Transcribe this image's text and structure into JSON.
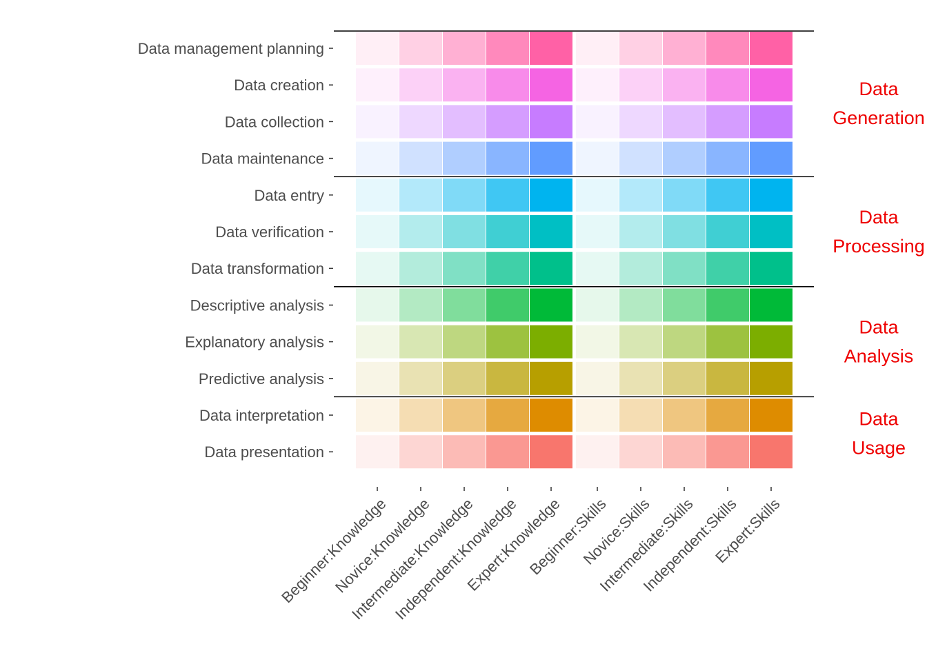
{
  "chart_data": {
    "type": "heatmap",
    "rows": [
      "Data management planning",
      "Data creation",
      "Data collection",
      "Data maintenance",
      "Data entry",
      "Data verification",
      "Data transformation",
      "Descriptive analysis",
      "Explanatory analysis",
      "Predictive analysis",
      "Data interpretation",
      "Data presentation"
    ],
    "columns": [
      "Beginner:Knowledge",
      "Novice:Knowledge",
      "Intermediate:Knowledge",
      "Independent:Knowledge",
      "Expert:Knowledge",
      "Beginner:Skills",
      "Novice:Skills",
      "Intermediate:Skills",
      "Independent:Skills",
      "Expert:Skills"
    ],
    "column_groups": [
      "Knowledge",
      "Skills"
    ],
    "levels": [
      1,
      2,
      3,
      4,
      5
    ],
    "row_base_colors": [
      "#ff61a6",
      "#f564e3",
      "#c77cff",
      "#619cff",
      "#00b4ef",
      "#00bfc4",
      "#00c08b",
      "#00ba38",
      "#7cae00",
      "#b79f00",
      "#de8c00",
      "#f8766d"
    ],
    "level_alpha": [
      0.1,
      0.3,
      0.5,
      0.75,
      1.0
    ],
    "groups": [
      {
        "label_lines": [
          "Data",
          "Generation"
        ],
        "rows": [
          0,
          3
        ]
      },
      {
        "label_lines": [
          "Data",
          "Processing"
        ],
        "rows": [
          4,
          6
        ]
      },
      {
        "label_lines": [
          "Data",
          "Analysis"
        ],
        "rows": [
          7,
          9
        ]
      },
      {
        "label_lines": [
          "Data",
          "Usage"
        ],
        "rows": [
          10,
          11
        ]
      }
    ],
    "group_label_color": "#ee0000"
  }
}
